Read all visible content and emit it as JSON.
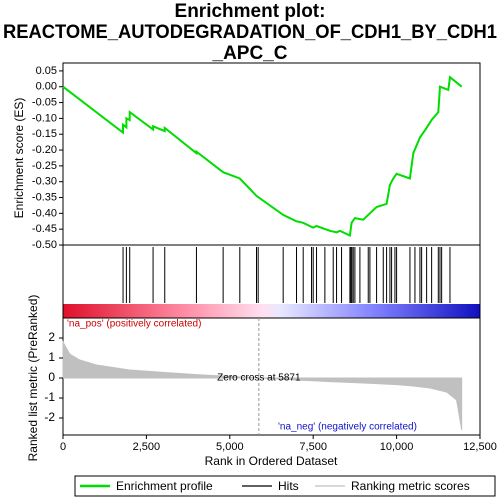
{
  "chart_data": [
    {
      "type": "line",
      "name": "Enrichment profile",
      "color": "#00dd00",
      "title_lines": [
        "Enrichment plot:",
        "REACTOME_AUTODEGRADATION_OF_CDH1_BY_CDH1",
        "_APC_C"
      ],
      "ylabel": "Enrichment score (ES)",
      "xlim": [
        0,
        12500
      ],
      "ylim": [
        -0.5,
        0.075
      ],
      "yticks": [
        0.05,
        {
          "value": 0,
          "label": "0.00"
        },
        -0.05,
        {
          "value": -0.1,
          "label": "-0.10"
        },
        -0.15,
        {
          "value": -0.2,
          "label": "-0.20"
        },
        -0.25,
        {
          "value": -0.3,
          "label": "-0.30"
        },
        -0.35,
        {
          "value": -0.4,
          "label": "-0.40"
        },
        -0.45,
        {
          "value": -0.5,
          "label": "-0.50"
        }
      ],
      "x": [
        0,
        1800,
        1800,
        1900,
        1900,
        2000,
        2000,
        2700,
        2700,
        3050,
        3050,
        4000,
        4000,
        4800,
        5300,
        5800,
        6600,
        7000,
        7200,
        7500,
        7600,
        8000,
        8200,
        8300,
        8600,
        8650,
        8750,
        9000,
        9200,
        9400,
        9700,
        9800,
        9900,
        10000,
        10400,
        10500,
        10700,
        10900,
        11050,
        11250,
        11300,
        11550,
        11600,
        11950
      ],
      "values": [
        0,
        -0.145,
        -0.12,
        -0.128,
        -0.1,
        -0.105,
        -0.08,
        -0.135,
        -0.125,
        -0.14,
        -0.13,
        -0.21,
        -0.205,
        -0.27,
        -0.29,
        -0.345,
        -0.405,
        -0.425,
        -0.43,
        -0.445,
        -0.44,
        -0.455,
        -0.46,
        -0.455,
        -0.47,
        -0.43,
        -0.415,
        -0.42,
        -0.4,
        -0.38,
        -0.37,
        -0.31,
        -0.29,
        -0.275,
        -0.29,
        -0.21,
        -0.16,
        -0.13,
        -0.105,
        -0.08,
        0,
        -0.01,
        0.03,
        0
      ]
    },
    {
      "type": "rug",
      "name": "Hits",
      "color": "#000000",
      "xlim": [
        0,
        12500
      ],
      "x": [
        1800,
        1900,
        2000,
        2700,
        3050,
        4000,
        4800,
        5300,
        5800,
        5850,
        6600,
        7000,
        7200,
        7450,
        7500,
        7600,
        7850,
        8100,
        8200,
        8350,
        8600,
        8630,
        8660,
        8700,
        8750,
        8900,
        9150,
        9200,
        9400,
        9600,
        9700,
        9800,
        9850,
        9950,
        10000,
        10400,
        10550,
        10700,
        10750,
        10900,
        11050,
        11250,
        11300,
        11350,
        11600
      ]
    },
    {
      "type": "area",
      "name": "Ranking metric scores",
      "color": "#c0c0c0",
      "ylabel": "Ranked list metric (PreRanked)",
      "xlabel": "Rank in Ordered Dataset",
      "xlim": [
        0,
        12500
      ],
      "ylim": [
        -2.85,
        3
      ],
      "xticks": [
        0,
        {
          "value": 2500,
          "label": "2,500"
        },
        {
          "value": 5000,
          "label": "5,000"
        },
        {
          "value": 7500,
          "label": "7,500"
        },
        {
          "value": 10000,
          "label": "10,000"
        },
        {
          "value": 12500,
          "label": "12,500"
        }
      ],
      "yticks": [
        2,
        1,
        0,
        -1,
        -2
      ],
      "x": [
        0,
        200,
        500,
        1000,
        2000,
        3000,
        4000,
        5000,
        5871,
        7000,
        8000,
        9000,
        10000,
        10500,
        11000,
        11500,
        11800,
        11950
      ],
      "values": [
        1.8,
        1.2,
        0.9,
        0.65,
        0.4,
        0.28,
        0.17,
        0.08,
        0,
        -0.1,
        -0.18,
        -0.25,
        -0.33,
        -0.4,
        -0.5,
        -0.7,
        -1.1,
        -2.6
      ],
      "zero_cross": 5871,
      "annotations": [
        "'na_pos' (positively correlated)",
        "Zero cross at 5871",
        "'na_neg' (negatively correlated)"
      ]
    }
  ]
}
